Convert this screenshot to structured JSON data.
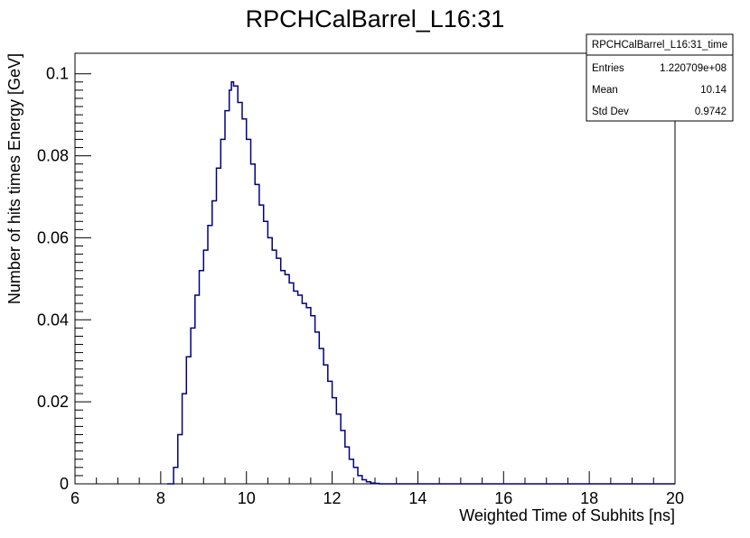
{
  "chart_data": {
    "type": "line",
    "title": "RPCHCalBarrel_L16:31",
    "xlabel": "Weighted Time of Subhits [ns]",
    "ylabel": "Number of hits times Energy [GeV]",
    "xlim": [
      6,
      20
    ],
    "ylim": [
      0,
      0.105
    ],
    "xticks": [
      "6",
      "8",
      "10",
      "12",
      "14",
      "16",
      "18",
      "20"
    ],
    "yticks": [
      "0",
      "0.02",
      "0.04",
      "0.06",
      "0.08",
      "0.1"
    ],
    "line_color": "#000080",
    "grid": false,
    "series": [
      {
        "name": "RPCHCalBarrel_L16:31_time",
        "x": [
          8.15,
          8.25,
          8.3,
          8.4,
          8.5,
          8.6,
          8.7,
          8.8,
          8.9,
          9.0,
          9.1,
          9.2,
          9.3,
          9.4,
          9.5,
          9.6,
          9.65,
          9.7,
          9.8,
          9.9,
          10.0,
          10.1,
          10.2,
          10.3,
          10.4,
          10.5,
          10.6,
          10.7,
          10.8,
          10.9,
          11.0,
          11.1,
          11.2,
          11.3,
          11.4,
          11.5,
          11.6,
          11.7,
          11.8,
          11.9,
          12.0,
          12.1,
          12.2,
          12.3,
          12.4,
          12.5,
          12.6,
          12.7,
          12.8,
          12.9,
          13.0,
          13.1,
          13.2,
          13.5,
          14.0,
          20.0
        ],
        "y": [
          0.0,
          0.0,
          0.004,
          0.012,
          0.022,
          0.031,
          0.038,
          0.046,
          0.052,
          0.057,
          0.063,
          0.069,
          0.077,
          0.084,
          0.091,
          0.096,
          0.098,
          0.097,
          0.093,
          0.089,
          0.084,
          0.078,
          0.073,
          0.068,
          0.064,
          0.06,
          0.057,
          0.055,
          0.052,
          0.051,
          0.049,
          0.047,
          0.046,
          0.044,
          0.043,
          0.041,
          0.037,
          0.033,
          0.029,
          0.025,
          0.021,
          0.017,
          0.013,
          0.009,
          0.006,
          0.004,
          0.002,
          0.001,
          0.0005,
          0.0002,
          0.0001,
          0.0,
          0.0,
          0.0,
          0.0,
          0.0
        ]
      }
    ]
  },
  "stats": {
    "title": "RPCHCalBarrel_L16:31_time",
    "rows": [
      {
        "label": "Entries",
        "value": "1.220709e+08"
      },
      {
        "label": "Mean",
        "value": "10.14"
      },
      {
        "label": "Std Dev",
        "value": "0.9742"
      }
    ]
  }
}
